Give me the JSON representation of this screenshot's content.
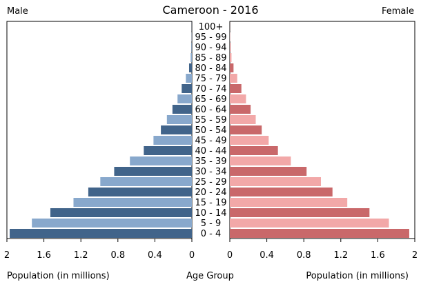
{
  "title": "Cameroon - 2016",
  "left_label": "Male",
  "right_label": "Female",
  "xlabel_left": "Population (in millions)",
  "xlabel_center": "Age Group",
  "xlabel_right": "Population (in millions)",
  "colors": {
    "male_dark": "#41648a",
    "male_light": "#88a8cc",
    "female_dark": "#c9686a",
    "female_light": "#f2a8a8",
    "axis": "#000000"
  },
  "chart_data": {
    "type": "bar",
    "orientation": "horizontal",
    "title": "Cameroon - 2016",
    "categories": [
      "100+",
      "95 - 99",
      "90 - 94",
      "85 - 89",
      "80 - 84",
      "75 - 79",
      "70 - 74",
      "65 - 69",
      "60 - 64",
      "55 - 59",
      "50 - 54",
      "45 - 49",
      "40 - 44",
      "35 - 39",
      "30 - 34",
      "25 - 29",
      "20 - 24",
      "15 - 19",
      "10 - 14",
      "5 - 9",
      "0 - 4"
    ],
    "series": [
      {
        "name": "Male",
        "values": [
          0.001,
          0.002,
          0.005,
          0.013,
          0.03,
          0.065,
          0.11,
          0.155,
          0.21,
          0.27,
          0.335,
          0.415,
          0.52,
          0.67,
          0.84,
          0.99,
          1.12,
          1.28,
          1.53,
          1.73,
          1.97
        ]
      },
      {
        "name": "Female",
        "values": [
          0.001,
          0.003,
          0.007,
          0.018,
          0.04,
          0.08,
          0.125,
          0.175,
          0.225,
          0.28,
          0.345,
          0.42,
          0.52,
          0.66,
          0.83,
          0.985,
          1.11,
          1.27,
          1.51,
          1.72,
          1.94
        ]
      }
    ],
    "xlim": [
      0,
      2
    ],
    "xticks": [
      "2",
      "1.6",
      "1.2",
      "0.8",
      "0.4",
      "0",
      "0",
      "0.4",
      "0.8",
      "1.2",
      "1.6",
      "2"
    ],
    "grid": false
  }
}
